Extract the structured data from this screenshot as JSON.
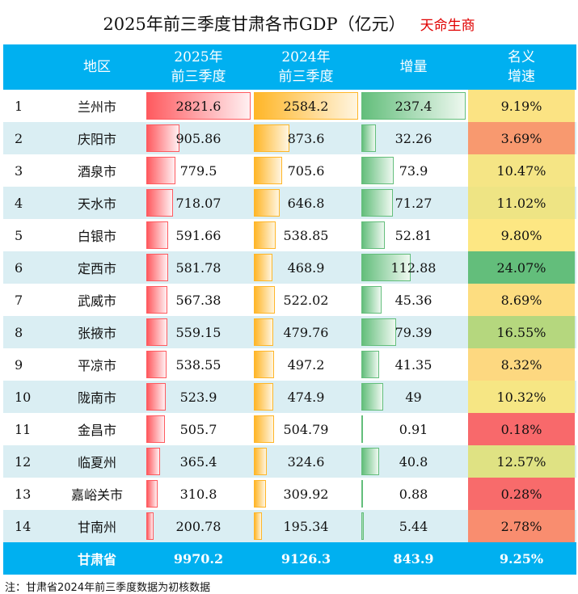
{
  "title": "2025年前三季度甘肃各市GDP（亿元）",
  "brand": "天命生商",
  "watermark": "天命生商",
  "headers": {
    "region": "地区",
    "y2025_l1": "2025年",
    "y2025_l2": "前三季度",
    "y2024_l1": "2024年",
    "y2024_l2": "前三季度",
    "increase": "增量",
    "growth_l1": "名义",
    "growth_l2": "增速"
  },
  "rows": [
    {
      "rank": "1",
      "name": "兰州市",
      "v2025": "2821.6",
      "v2024": "2584.2",
      "inc": "237.4",
      "growth": "9.19%",
      "color": "#fbe383"
    },
    {
      "rank": "2",
      "name": "庆阳市",
      "v2025": "905.86",
      "v2024": "873.6",
      "inc": "32.26",
      "growth": "3.69%",
      "color": "#f8996f"
    },
    {
      "rank": "3",
      "name": "酒泉市",
      "v2025": "779.5",
      "v2024": "705.6",
      "inc": "73.9",
      "growth": "10.47%",
      "color": "#f5e585"
    },
    {
      "rank": "4",
      "name": "天水市",
      "v2025": "718.07",
      "v2024": "646.8",
      "inc": "71.27",
      "growth": "11.02%",
      "color": "#eee484"
    },
    {
      "rank": "5",
      "name": "白银市",
      "v2025": "591.66",
      "v2024": "538.85",
      "inc": "52.81",
      "growth": "9.80%",
      "color": "#fde783"
    },
    {
      "rank": "6",
      "name": "定西市",
      "v2025": "581.78",
      "v2024": "468.9",
      "inc": "112.88",
      "growth": "24.07%",
      "color": "#63be7b"
    },
    {
      "rank": "7",
      "name": "武威市",
      "v2025": "567.38",
      "v2024": "522.02",
      "inc": "45.36",
      "growth": "8.69%",
      "color": "#fddd80"
    },
    {
      "rank": "8",
      "name": "张掖市",
      "v2025": "559.15",
      "v2024": "479.76",
      "inc": "79.39",
      "growth": "16.55%",
      "color": "#b5d77e"
    },
    {
      "rank": "9",
      "name": "平凉市",
      "v2025": "538.55",
      "v2024": "497.2",
      "inc": "41.35",
      "growth": "8.32%",
      "color": "#fdd880"
    },
    {
      "rank": "10",
      "name": "陇南市",
      "v2025": "523.9",
      "v2024": "474.9",
      "inc": "49",
      "growth": "10.32%",
      "color": "#f6e684"
    },
    {
      "rank": "11",
      "name": "金昌市",
      "v2025": "505.7",
      "v2024": "504.79",
      "inc": "0.91",
      "growth": "0.18%",
      "color": "#f8696b"
    },
    {
      "rank": "12",
      "name": "临夏州",
      "v2025": "365.4",
      "v2024": "324.6",
      "inc": "40.8",
      "growth": "12.57%",
      "color": "#dfe283"
    },
    {
      "rank": "13",
      "name": "嘉峪关市",
      "v2025": "310.8",
      "v2024": "309.92",
      "inc": "0.88",
      "growth": "0.28%",
      "color": "#f86b6b"
    },
    {
      "rank": "14",
      "name": "甘南州",
      "v2025": "200.78",
      "v2024": "195.34",
      "inc": "5.44",
      "growth": "2.78%",
      "color": "#f98d6f"
    }
  ],
  "total": {
    "name": "甘肃省",
    "v2025": "9970.2",
    "v2024": "9126.3",
    "inc": "843.9",
    "growth": "9.25%"
  },
  "note": "注：甘肃省2024年前三季度数据为初核数据"
}
